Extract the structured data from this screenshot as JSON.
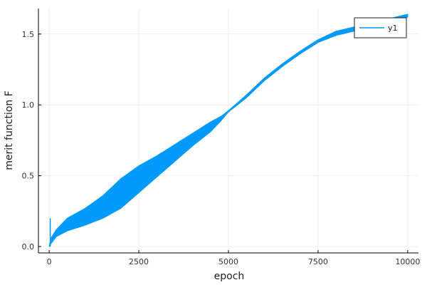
{
  "chart_data": {
    "type": "line",
    "xlabel": "epoch",
    "ylabel": "merit function F",
    "xlim": [
      -300,
      10300
    ],
    "ylim": [
      -0.045,
      1.68
    ],
    "xticks": [
      0,
      2500,
      5000,
      7500,
      10000
    ],
    "xtick_labels": [
      "0",
      "2500",
      "5000",
      "7500",
      "10000"
    ],
    "yticks": [
      0.0,
      0.5,
      1.0,
      1.5
    ],
    "ytick_labels": [
      "0.0",
      "0.5",
      "1.0",
      "1.5"
    ],
    "grid": true,
    "legend_position": "top-right",
    "series": [
      {
        "name": "y1",
        "color": "#009AFA",
        "band_x": [
          0,
          50,
          200,
          500,
          1000,
          1500,
          2000,
          2500,
          3000,
          3500,
          4000,
          4500,
          4800,
          5000,
          5500,
          6000,
          6500,
          7000,
          7500,
          8000,
          8500,
          9000,
          9500,
          10000
        ],
        "upper": [
          0.0,
          0.06,
          0.12,
          0.2,
          0.27,
          0.36,
          0.48,
          0.57,
          0.64,
          0.72,
          0.8,
          0.88,
          0.92,
          0.96,
          1.07,
          1.19,
          1.29,
          1.38,
          1.46,
          1.52,
          1.55,
          1.58,
          1.61,
          1.64
        ],
        "lower": [
          0.0,
          0.02,
          0.07,
          0.11,
          0.15,
          0.2,
          0.27,
          0.38,
          0.49,
          0.6,
          0.71,
          0.81,
          0.89,
          0.95,
          1.05,
          1.17,
          1.27,
          1.36,
          1.44,
          1.49,
          1.52,
          1.54,
          1.57,
          1.62
        ],
        "spike": {
          "x": 30,
          "y_min": 0.0,
          "y_max": 0.2
        }
      }
    ]
  }
}
